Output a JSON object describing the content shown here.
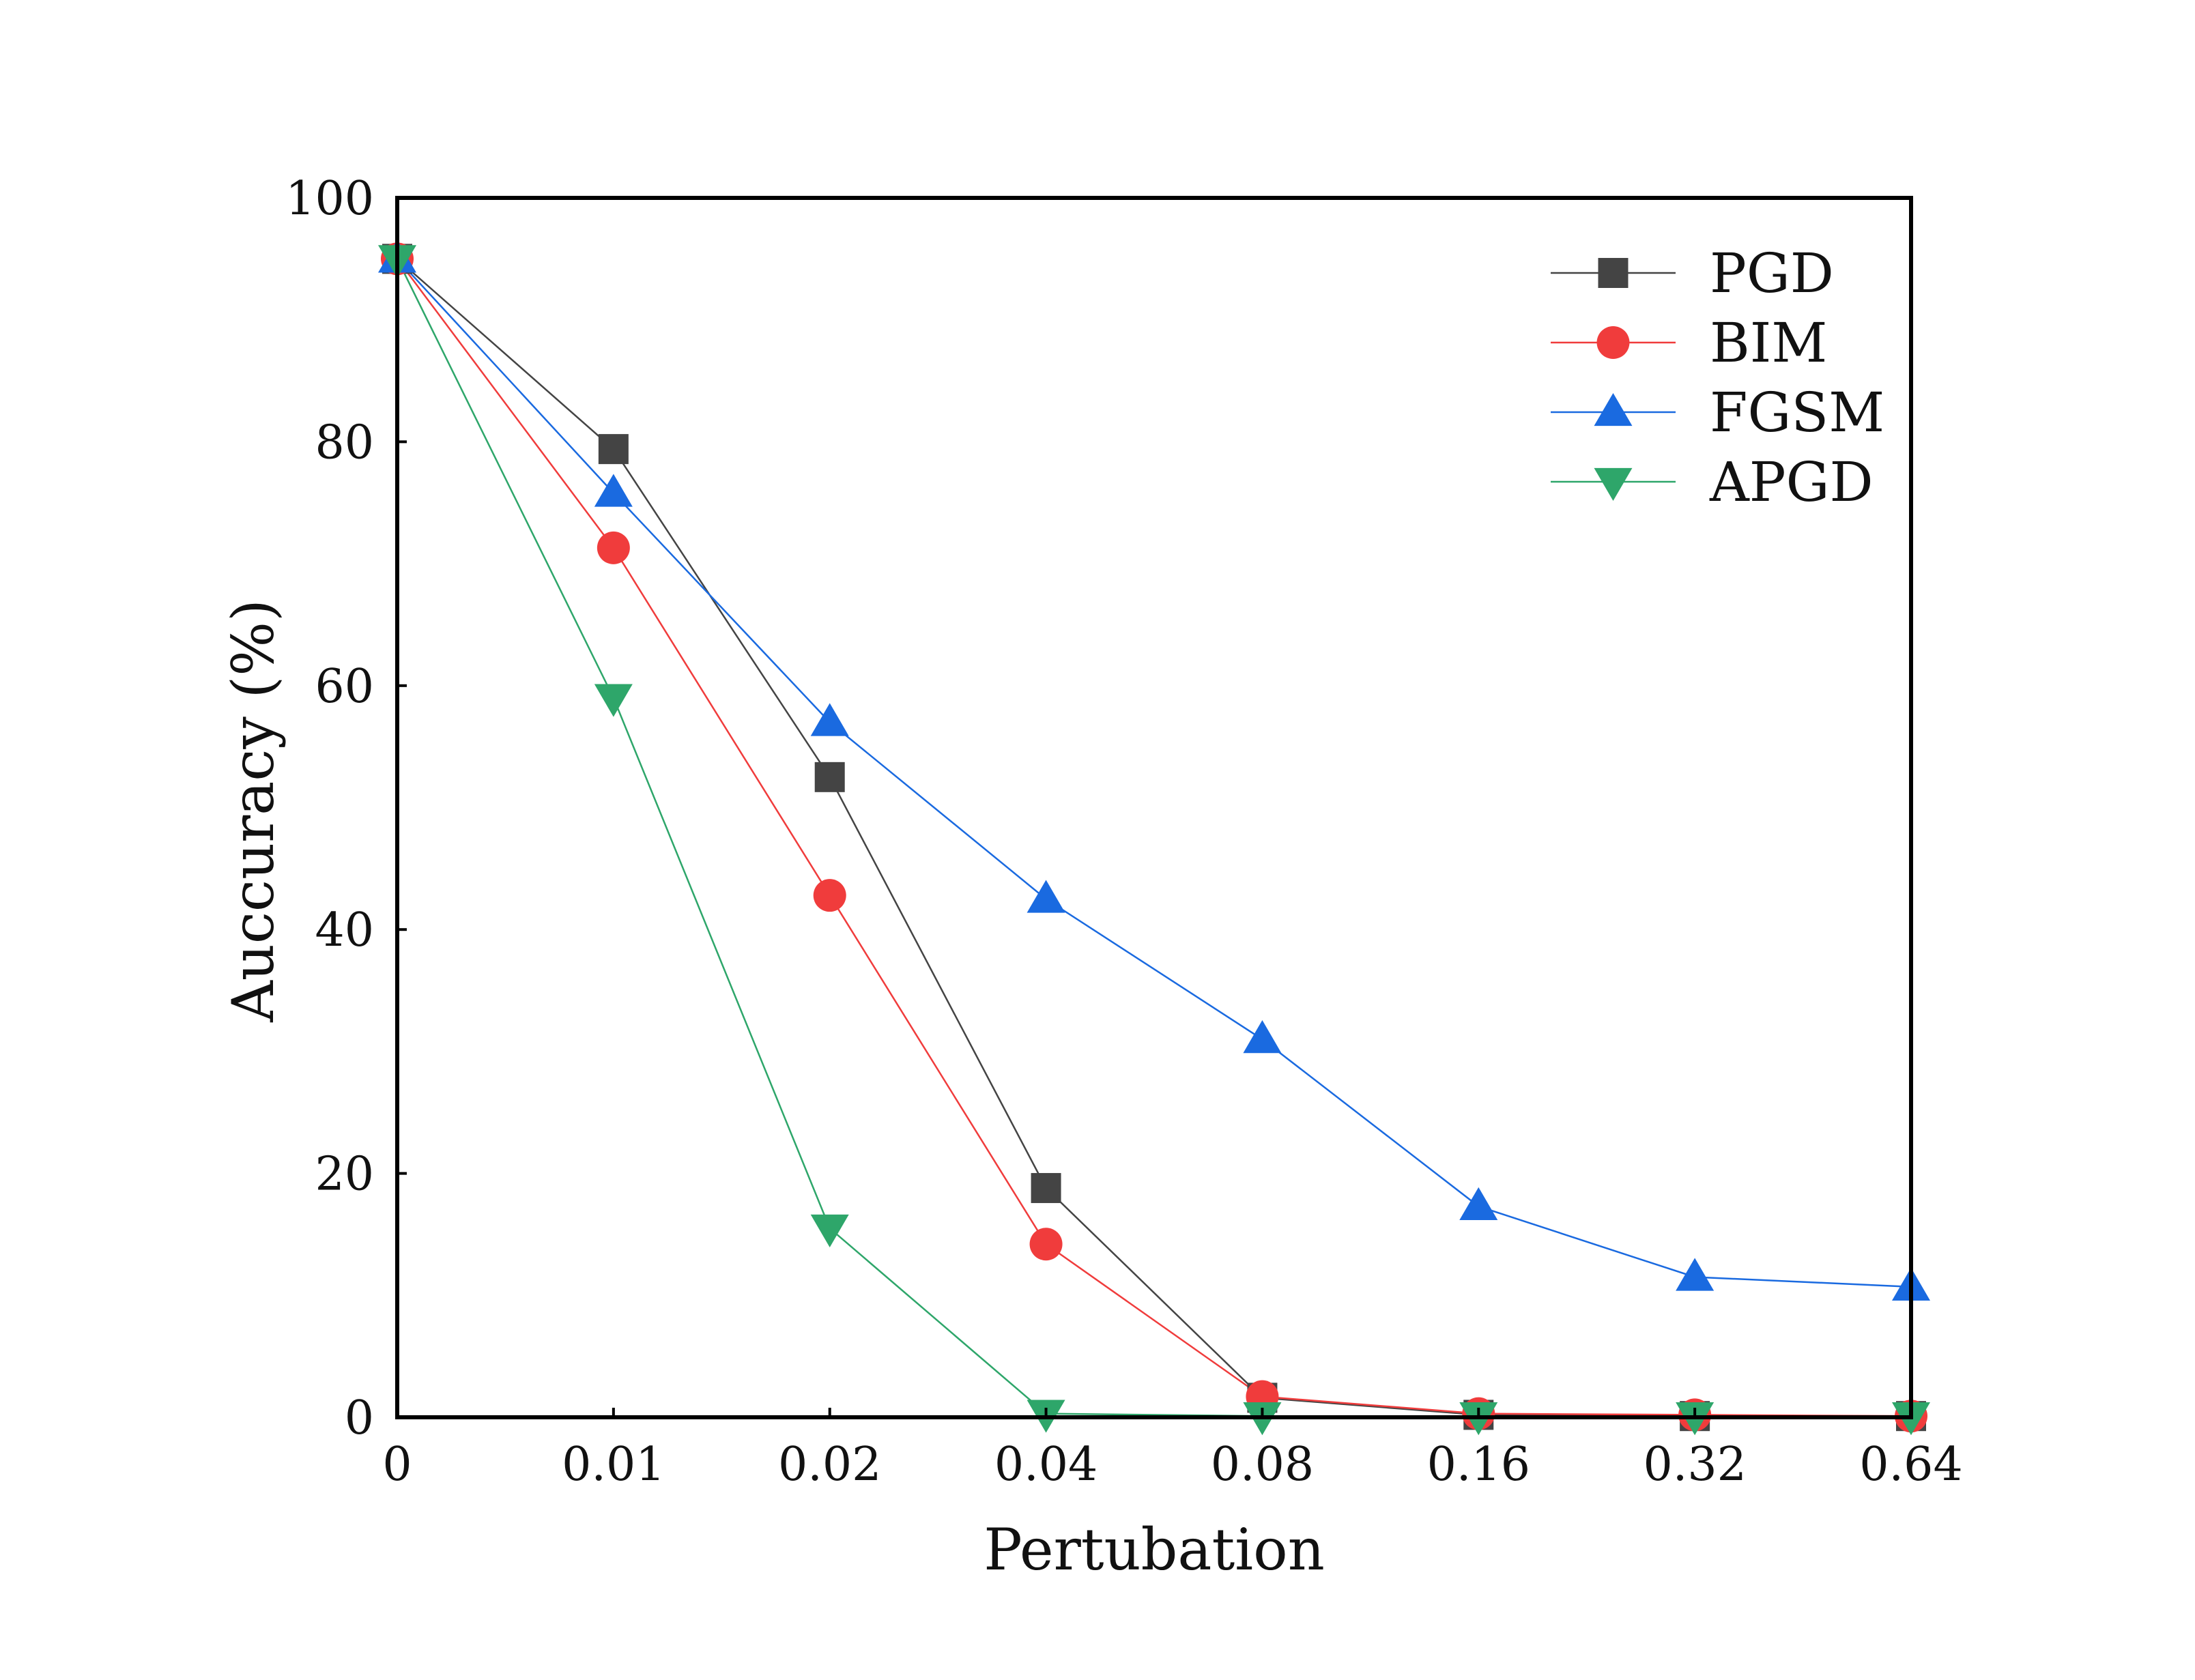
{
  "chart_data": {
    "type": "line",
    "title": "",
    "xlabel": "Pertubation",
    "ylabel": "Auccuracy (%)",
    "categories": [
      "0",
      "0.01",
      "0.02",
      "0.04",
      "0.08",
      "0.16",
      "0.32",
      "0.64"
    ],
    "ylim": [
      0,
      100
    ],
    "yticks": [
      "0",
      "20",
      "40",
      "60",
      "80",
      "100"
    ],
    "grid": false,
    "legend_position": "top-right",
    "series": [
      {
        "name": "PGD",
        "color": "#444444",
        "marker": "square",
        "values": [
          95,
          79.4,
          52.5,
          18.8,
          1.6,
          0.2,
          0.1,
          0.1
        ]
      },
      {
        "name": "BIM",
        "color": "#f03c3c",
        "marker": "circle",
        "values": [
          95,
          71.3,
          42.8,
          14.2,
          1.7,
          0.3,
          0.2,
          0.1
        ]
      },
      {
        "name": "FGSM",
        "color": "#1a6ae0",
        "marker": "triangle-up",
        "values": [
          95,
          75.8,
          57.0,
          42.5,
          31.0,
          17.3,
          11.5,
          10.7
        ]
      },
      {
        "name": "APGD",
        "color": "#2ea66a",
        "marker": "triangle-down",
        "values": [
          95,
          59.0,
          15.5,
          0.3,
          0.1,
          0.1,
          0.1,
          0.1
        ]
      }
    ]
  }
}
